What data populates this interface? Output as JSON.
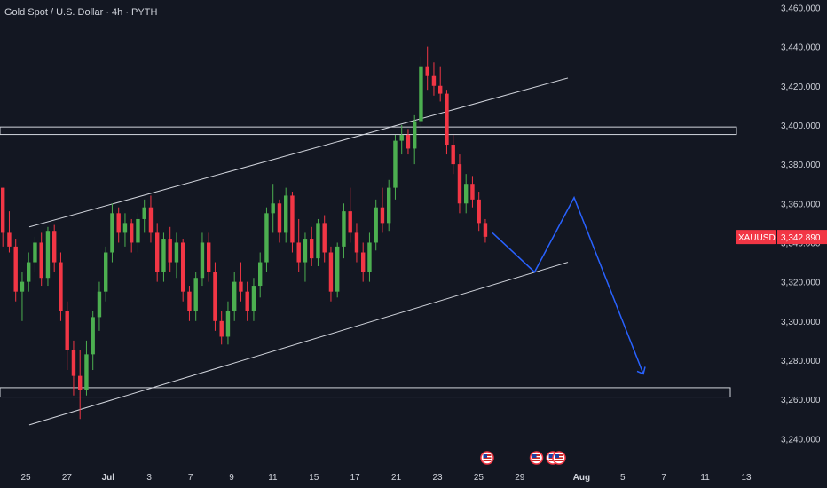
{
  "header": {
    "title": "Gold Spot / U.S. Dollar · 4h · PYTH"
  },
  "colors": {
    "background": "#131722",
    "bull": "#4caf50",
    "bear": "#f23645",
    "projection": "#2962ff",
    "lines": "#d1d4dc",
    "text": "#d1d4dc"
  },
  "price_tag": {
    "symbol": "XAUUSD",
    "price": "3,342.890",
    "value": 3342.89
  },
  "chart_data": {
    "type": "candlestick",
    "ylim": [
      3232,
      3462
    ],
    "y_ticks": [
      3240,
      3260,
      3280,
      3300,
      3320,
      3340,
      3360,
      3380,
      3400,
      3420,
      3440,
      3460
    ],
    "y_tick_labels": [
      "3,240.000",
      "3,260.000",
      "3,280.000",
      "3,300.000",
      "3,320.000",
      "3,340.000",
      "3,360.000",
      "3,380.000",
      "3,400.000",
      "3,420.000",
      "3,440.000",
      "3,460.000"
    ],
    "x_ticks": [
      {
        "label": "25",
        "day": 0,
        "bold": false
      },
      {
        "label": "27",
        "day": 2,
        "bold": false
      },
      {
        "label": "Jul",
        "day": 4,
        "bold": true
      },
      {
        "label": "3",
        "day": 6,
        "bold": false
      },
      {
        "label": "7",
        "day": 8,
        "bold": false
      },
      {
        "label": "9",
        "day": 10,
        "bold": false
      },
      {
        "label": "11",
        "day": 12,
        "bold": false
      },
      {
        "label": "15",
        "day": 14,
        "bold": false
      },
      {
        "label": "17",
        "day": 16,
        "bold": false
      },
      {
        "label": "21",
        "day": 18,
        "bold": false
      },
      {
        "label": "23",
        "day": 20,
        "bold": false
      },
      {
        "label": "25",
        "day": 22,
        "bold": false
      },
      {
        "label": "29",
        "day": 24,
        "bold": false
      },
      {
        "label": "Aug",
        "day": 27,
        "bold": true
      },
      {
        "label": "5",
        "day": 29,
        "bold": false
      },
      {
        "label": "7",
        "day": 31,
        "bold": false
      },
      {
        "label": "11",
        "day": 33,
        "bold": false
      },
      {
        "label": "13",
        "day": 35,
        "bold": false
      }
    ],
    "candles": [
      [
        3368,
        3368,
        3338,
        3345
      ],
      [
        3345,
        3356,
        3335,
        3338
      ],
      [
        3338,
        3342,
        3310,
        3315
      ],
      [
        3315,
        3325,
        3300,
        3320
      ],
      [
        3320,
        3335,
        3315,
        3330
      ],
      [
        3330,
        3343,
        3325,
        3340
      ],
      [
        3340,
        3345,
        3318,
        3322
      ],
      [
        3322,
        3348,
        3318,
        3346
      ],
      [
        3346,
        3349,
        3325,
        3330
      ],
      [
        3330,
        3335,
        3300,
        3305
      ],
      [
        3305,
        3310,
        3275,
        3285
      ],
      [
        3285,
        3290,
        3262,
        3272
      ],
      [
        3272,
        3285,
        3250,
        3265
      ],
      [
        3265,
        3290,
        3262,
        3283
      ],
      [
        3283,
        3305,
        3275,
        3302
      ],
      [
        3302,
        3320,
        3295,
        3315
      ],
      [
        3315,
        3338,
        3310,
        3335
      ],
      [
        3335,
        3360,
        3330,
        3355
      ],
      [
        3355,
        3358,
        3340,
        3345
      ],
      [
        3345,
        3355,
        3338,
        3350
      ],
      [
        3350,
        3352,
        3335,
        3340
      ],
      [
        3340,
        3355,
        3335,
        3352
      ],
      [
        3352,
        3362,
        3345,
        3358
      ],
      [
        3358,
        3364,
        3340,
        3345
      ],
      [
        3345,
        3350,
        3320,
        3325
      ],
      [
        3325,
        3345,
        3320,
        3342
      ],
      [
        3342,
        3348,
        3325,
        3330
      ],
      [
        3330,
        3345,
        3322,
        3340
      ],
      [
        3340,
        3342,
        3310,
        3315
      ],
      [
        3315,
        3318,
        3300,
        3305
      ],
      [
        3305,
        3325,
        3300,
        3322
      ],
      [
        3322,
        3345,
        3318,
        3340
      ],
      [
        3340,
        3345,
        3320,
        3325
      ],
      [
        3325,
        3330,
        3295,
        3300
      ],
      [
        3300,
        3305,
        3288,
        3292
      ],
      [
        3292,
        3310,
        3288,
        3305
      ],
      [
        3305,
        3325,
        3300,
        3320
      ],
      [
        3320,
        3330,
        3310,
        3315
      ],
      [
        3315,
        3320,
        3300,
        3305
      ],
      [
        3305,
        3322,
        3300,
        3318
      ],
      [
        3318,
        3335,
        3312,
        3330
      ],
      [
        3330,
        3358,
        3325,
        3355
      ],
      [
        3355,
        3370,
        3345,
        3360
      ],
      [
        3360,
        3362,
        3340,
        3345
      ],
      [
        3345,
        3368,
        3340,
        3364
      ],
      [
        3364,
        3366,
        3335,
        3340
      ],
      [
        3340,
        3352,
        3325,
        3330
      ],
      [
        3330,
        3345,
        3320,
        3342
      ],
      [
        3342,
        3348,
        3328,
        3332
      ],
      [
        3332,
        3352,
        3328,
        3350
      ],
      [
        3350,
        3354,
        3330,
        3335
      ],
      [
        3335,
        3338,
        3310,
        3315
      ],
      [
        3315,
        3340,
        3312,
        3338
      ],
      [
        3338,
        3360,
        3332,
        3356
      ],
      [
        3356,
        3368,
        3340,
        3345
      ],
      [
        3345,
        3350,
        3330,
        3335
      ],
      [
        3335,
        3340,
        3320,
        3325
      ],
      [
        3325,
        3345,
        3320,
        3340
      ],
      [
        3340,
        3362,
        3336,
        3358
      ],
      [
        3358,
        3368,
        3345,
        3350
      ],
      [
        3350,
        3372,
        3346,
        3368
      ],
      [
        3368,
        3395,
        3362,
        3392
      ],
      [
        3392,
        3400,
        3385,
        3395
      ],
      [
        3395,
        3398,
        3385,
        3388
      ],
      [
        3388,
        3405,
        3380,
        3402
      ],
      [
        3402,
        3435,
        3398,
        3430
      ],
      [
        3430,
        3440,
        3418,
        3425
      ],
      [
        3425,
        3432,
        3415,
        3420
      ],
      [
        3420,
        3430,
        3412,
        3416
      ],
      [
        3416,
        3418,
        3385,
        3390
      ],
      [
        3390,
        3395,
        3375,
        3380
      ],
      [
        3380,
        3385,
        3355,
        3360
      ],
      [
        3360,
        3375,
        3355,
        3370
      ],
      [
        3370,
        3374,
        3358,
        3362
      ],
      [
        3362,
        3366,
        3346,
        3350
      ],
      [
        3350,
        3352,
        3340,
        3343
      ]
    ],
    "levels": [
      {
        "name": "resistance-zone",
        "top": 3399,
        "bottom": 3397
      },
      {
        "name": "support-zone",
        "top": 3266,
        "bottom": 3263
      }
    ],
    "channel": {
      "upper": [
        [
          0.3,
          3348
        ],
        [
          22.2,
          3424
        ]
      ],
      "lower": [
        [
          0.3,
          3247
        ],
        [
          22.2,
          3330
        ]
      ]
    },
    "projection": [
      [
        22.3,
        3345
      ],
      [
        24.0,
        3325
      ],
      [
        25.6,
        3363
      ],
      [
        28.4,
        3273
      ]
    ],
    "event_markers": [
      22.2,
      24.6,
      25.4,
      25.7
    ]
  }
}
